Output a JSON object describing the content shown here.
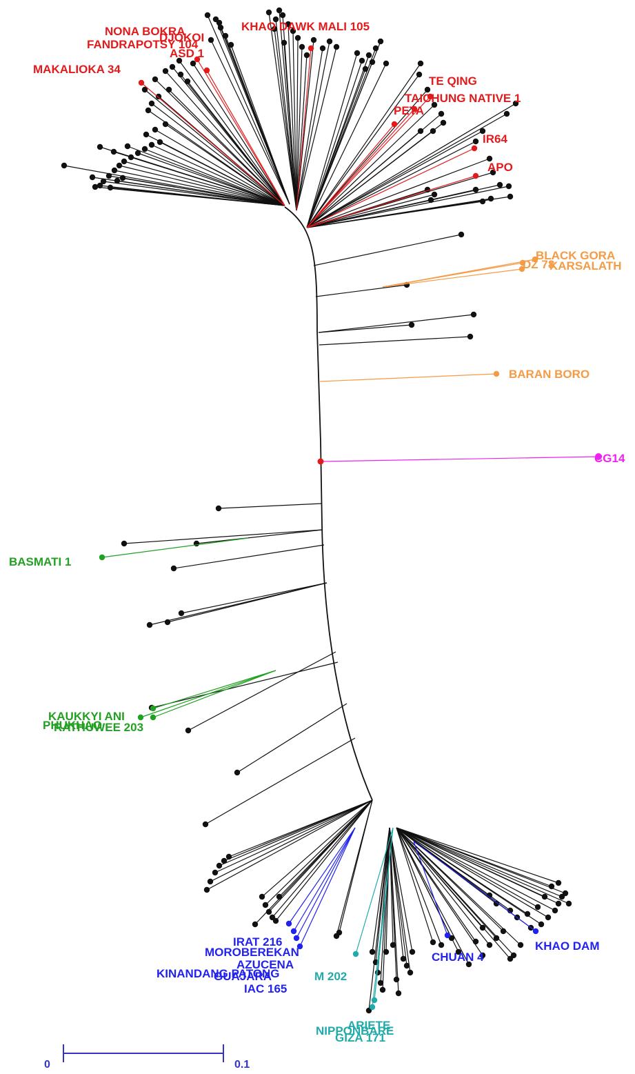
{
  "colors": {
    "default": "#111111",
    "red": "#e31a1c",
    "orange": "#f59a45",
    "magenta": "#ee22ee",
    "green": "#22a022",
    "blue": "#2222ee",
    "teal": "#22aaaa",
    "scale": "#3333cc"
  },
  "labels": [
    {
      "text": "NONA BOKRA",
      "group": "red"
    },
    {
      "text": "DJOKOI",
      "group": "red"
    },
    {
      "text": "FANDRAPOTSY 104",
      "group": "red"
    },
    {
      "text": "ASD 1",
      "group": "red"
    },
    {
      "text": "MAKALIOKA 34",
      "group": "red"
    },
    {
      "text": "KHAO DAWK MALI 105",
      "group": "red"
    },
    {
      "text": "TE QING",
      "group": "red"
    },
    {
      "text": "TAICHUNG NATIVE 1",
      "group": "red"
    },
    {
      "text": "PETA",
      "group": "red"
    },
    {
      "text": "IR64",
      "group": "red"
    },
    {
      "text": "APO",
      "group": "red"
    },
    {
      "text": "BLACK GORA",
      "group": "orange"
    },
    {
      "text": "DZ 78",
      "group": "orange"
    },
    {
      "text": "KARSALATH",
      "group": "orange"
    },
    {
      "text": "BARAN BORO",
      "group": "orange"
    },
    {
      "text": "CG14",
      "group": "magenta"
    },
    {
      "text": "BASMATI 1",
      "group": "green"
    },
    {
      "text": "KAUKKYI ANI",
      "group": "green"
    },
    {
      "text": "PHUKHAO",
      "group": "green"
    },
    {
      "text": "RATHUWEE 203",
      "group": "green"
    },
    {
      "text": "IRAT 216",
      "group": "blue"
    },
    {
      "text": "MOROBEREKAN",
      "group": "blue"
    },
    {
      "text": "AZUCENA",
      "group": "blue"
    },
    {
      "text": "KINANDANG PATONG",
      "group": "blue"
    },
    {
      "text": "GUAJARA",
      "group": "blue"
    },
    {
      "text": "IAC 165",
      "group": "blue"
    },
    {
      "text": "CHUAN 4",
      "group": "blue"
    },
    {
      "text": "KHAO DAM",
      "group": "blue"
    },
    {
      "text": "M 202",
      "group": "teal"
    },
    {
      "text": "ARIETE",
      "group": "teal"
    },
    {
      "text": "NIPPONBARE",
      "group": "teal"
    },
    {
      "text": "GIZA 171",
      "group": "teal"
    }
  ],
  "scale_bar": {
    "start_label": "0",
    "end_label": "0.1"
  }
}
